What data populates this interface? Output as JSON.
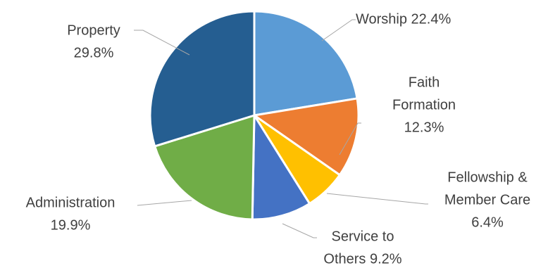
{
  "chart_data": {
    "type": "pie",
    "slices": [
      {
        "name": "Worship",
        "value": 22.4,
        "label_lines": [
          "Worship 22.4%"
        ],
        "color": "#5b9bd5"
      },
      {
        "name": "Faith Formation",
        "value": 12.3,
        "label_lines": [
          "Faith",
          "Formation",
          "12.3%"
        ],
        "color": "#ed7d31"
      },
      {
        "name": "Fellowship & Member Care",
        "value": 6.4,
        "label_lines": [
          "Fellowship &",
          "Member Care",
          "6.4%"
        ],
        "color": "#ffc000"
      },
      {
        "name": "Service to Others",
        "value": 9.2,
        "label_lines": [
          "Service to",
          "Others 9.2%"
        ],
        "color": "#4472c4"
      },
      {
        "name": "Administration",
        "value": 19.9,
        "label_lines": [
          "Administration",
          "19.9%"
        ],
        "color": "#70ad47"
      },
      {
        "name": "Property",
        "value": 29.8,
        "label_lines": [
          "Property",
          "29.8%"
        ],
        "color": "#255e91"
      }
    ]
  }
}
